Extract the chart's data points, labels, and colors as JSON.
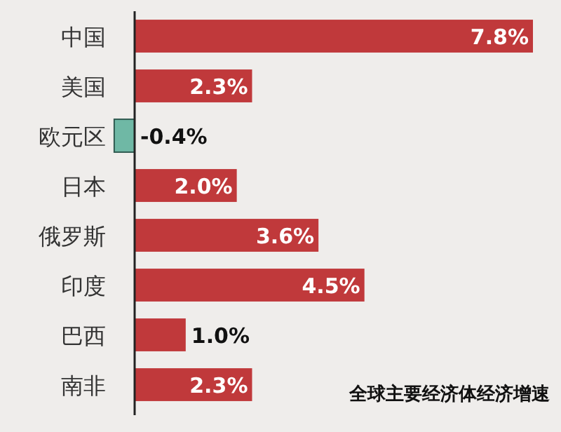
{
  "chart_data": {
    "type": "bar",
    "orientation": "horizontal",
    "title": "全球主要经济体经济增速",
    "categories": [
      "中国",
      "美国",
      "欧元区",
      "日本",
      "俄罗斯",
      "印度",
      "巴西",
      "南非"
    ],
    "values": [
      7.8,
      2.3,
      -0.4,
      2.0,
      3.6,
      4.5,
      1.0,
      2.3
    ],
    "value_labels": [
      "7.8%",
      "2.3%",
      "-0.4%",
      "2.0%",
      "3.6%",
      "4.5%",
      "1.0%",
      "2.3%"
    ],
    "colors": [
      "#c0393b",
      "#c0393b",
      "#6fb8a5",
      "#c0393b",
      "#c0393b",
      "#c0393b",
      "#c0393b",
      "#c0393b"
    ]
  }
}
